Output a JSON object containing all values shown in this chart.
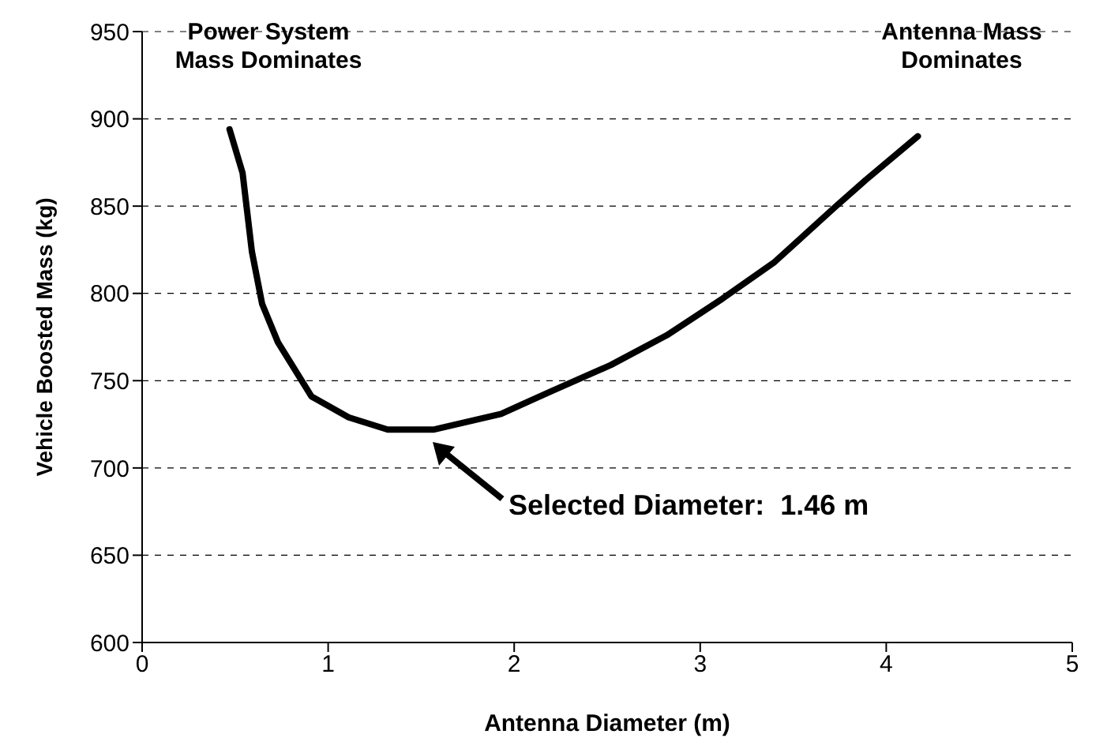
{
  "chart_data": {
    "type": "line",
    "xlabel": "Antenna Diameter (m)",
    "ylabel": "Vehicle Boosted Mass (kg)",
    "x": [
      0.47,
      0.54,
      0.59,
      0.645,
      0.73,
      0.91,
      1.11,
      1.32,
      1.57,
      1.93,
      2.2,
      2.52,
      2.82,
      3.12,
      3.4,
      3.72,
      3.89,
      4.17
    ],
    "series": [
      {
        "color": "#000000",
        "values": [
          894,
          869,
          824,
          794,
          772,
          741,
          729,
          722,
          722,
          731,
          744,
          759,
          776,
          797,
          818,
          849,
          865,
          890
        ]
      }
    ],
    "xlim": [
      0,
      5
    ],
    "xticks": [
      0,
      1,
      2,
      3,
      4,
      5
    ],
    "ylim": [
      600,
      950
    ],
    "yticks": [
      600,
      650,
      700,
      750,
      800,
      850,
      900,
      950
    ],
    "grid": "y",
    "marker": "none",
    "line_style": "solid",
    "annotations": [
      "Power System Mass Dominates",
      "Antenna Mass Dominates",
      "Selected Diameter:  1.46 m"
    ]
  }
}
